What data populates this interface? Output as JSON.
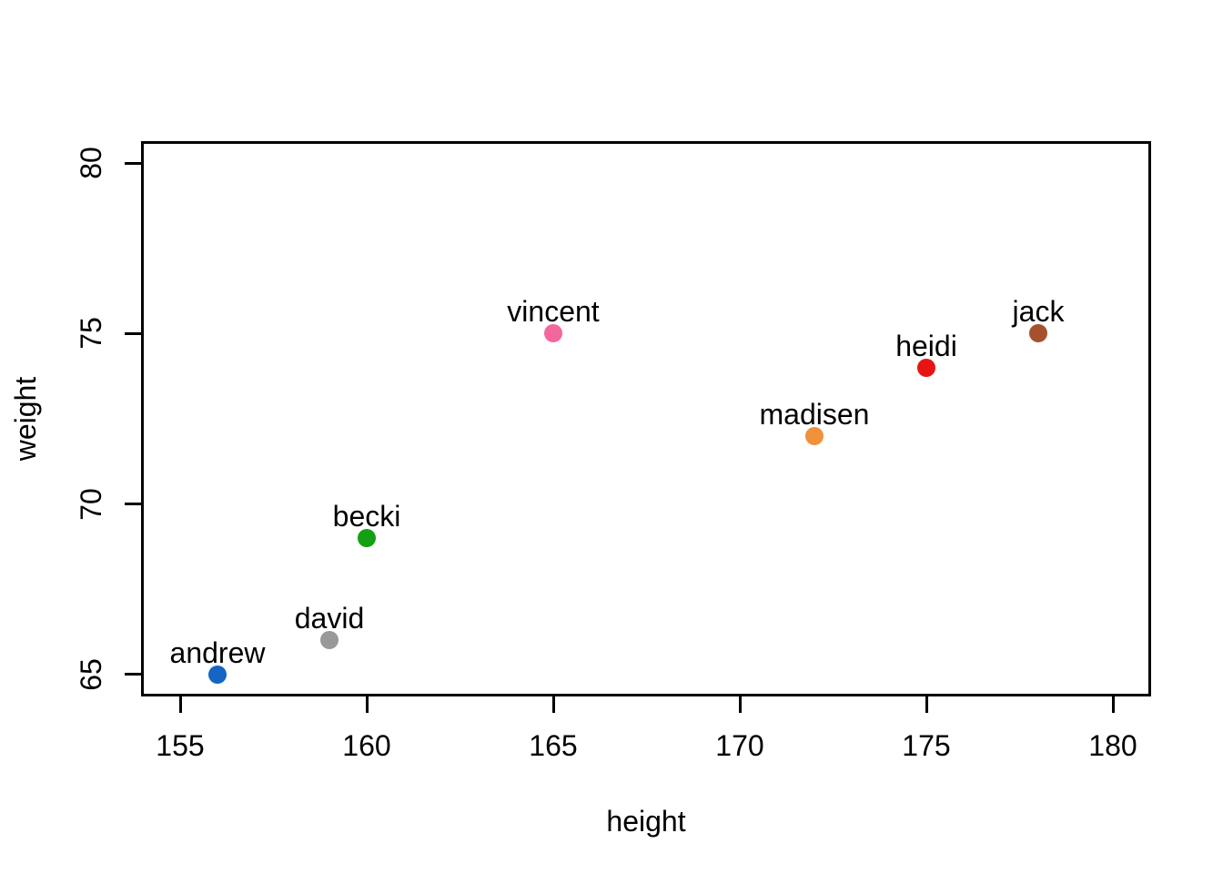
{
  "chart_data": {
    "type": "scatter",
    "title": "",
    "xlabel": "height",
    "ylabel": "weight",
    "xlim": [
      154,
      181
    ],
    "ylim": [
      64.4,
      80.6
    ],
    "x_ticks": [
      155,
      160,
      165,
      170,
      175,
      180
    ],
    "y_ticks": [
      65,
      70,
      75,
      80
    ],
    "grid": false,
    "legend": false,
    "marker": "filled-circle",
    "points": [
      {
        "label": "andrew",
        "x": 156,
        "y": 65,
        "color": "#1565c4"
      },
      {
        "label": "david",
        "x": 159,
        "y": 66,
        "color": "#999999"
      },
      {
        "label": "becki",
        "x": 160,
        "y": 69,
        "color": "#13a013"
      },
      {
        "label": "vincent",
        "x": 165,
        "y": 75,
        "color": "#f4679e"
      },
      {
        "label": "madisen",
        "x": 172,
        "y": 72,
        "color": "#f0913c"
      },
      {
        "label": "heidi",
        "x": 175,
        "y": 74,
        "color": "#e81414"
      },
      {
        "label": "jack",
        "x": 178,
        "y": 75,
        "color": "#a5522c"
      }
    ],
    "colors": {
      "axis": "#000000",
      "text": "#000000",
      "background": "#ffffff"
    }
  }
}
